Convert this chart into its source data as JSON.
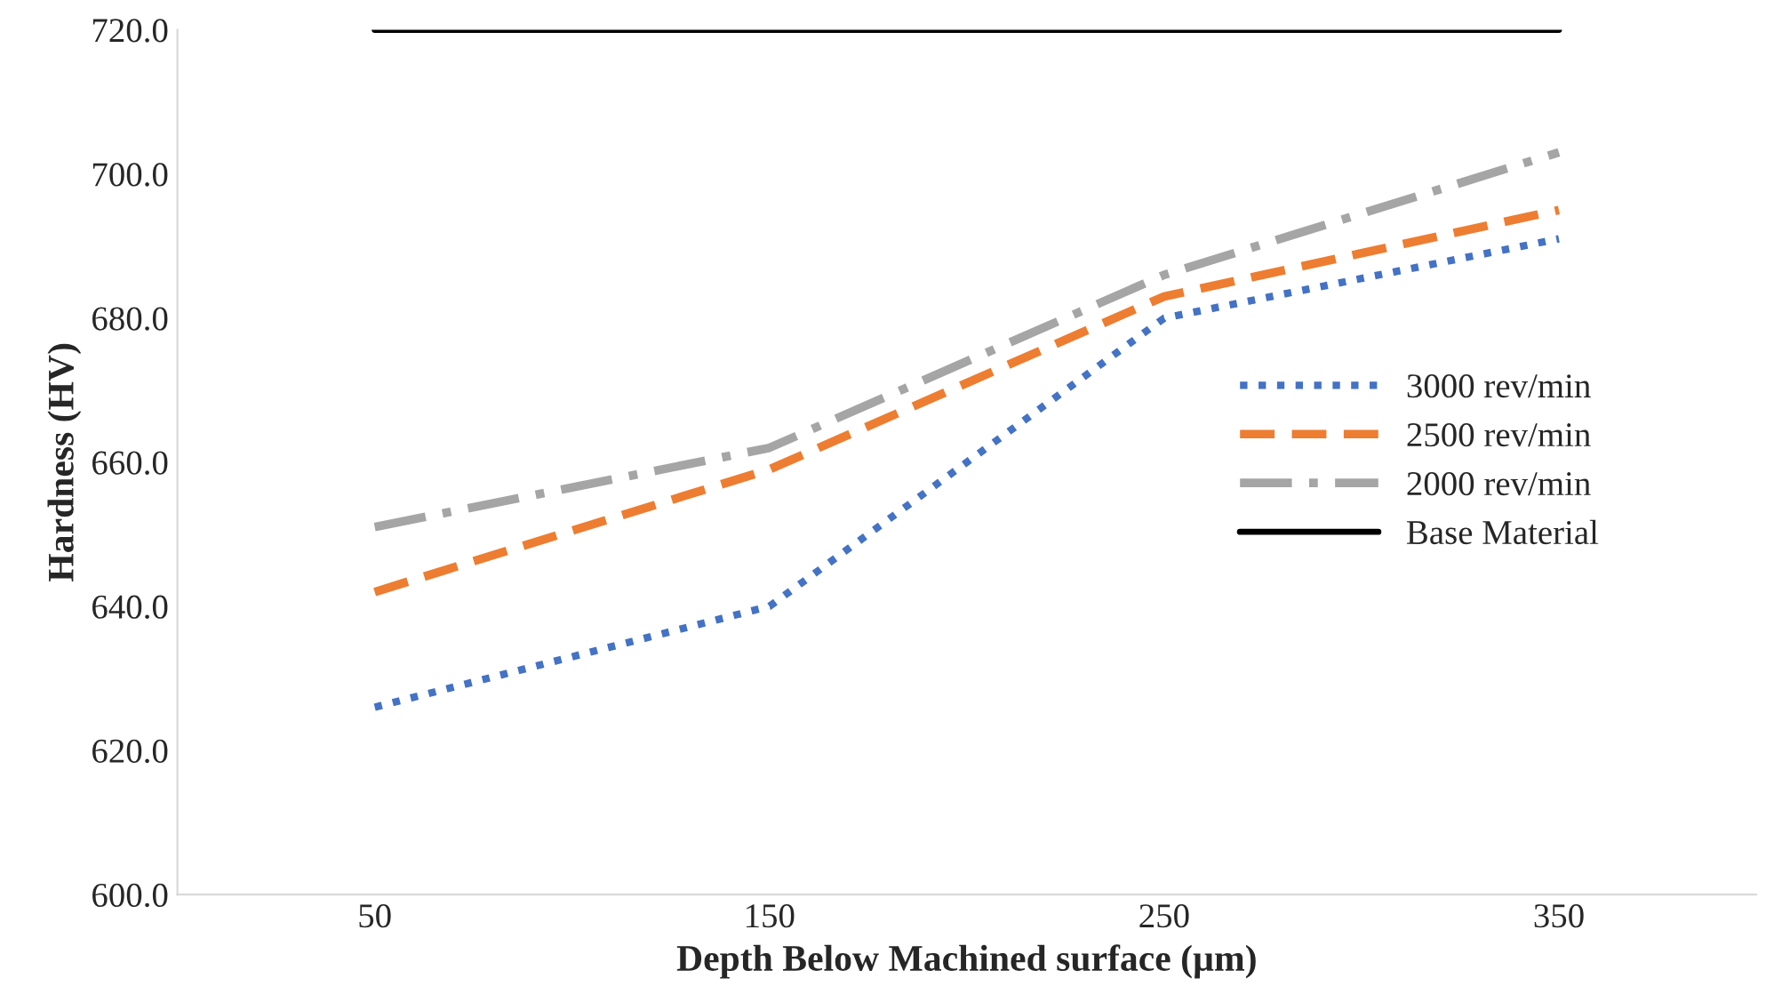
{
  "chart_data": {
    "type": "line",
    "xlabel": "Depth Below Machined surface (µm)",
    "ylabel": "Hardness (HV)",
    "categories": [
      "50",
      "150",
      "250",
      "350"
    ],
    "series": [
      {
        "name": "3000 rev/min",
        "color": "#4472c4",
        "line_style": "dotted",
        "values": [
          626,
          640,
          680,
          691
        ]
      },
      {
        "name": "2500 rev/min",
        "color": "#ed7d31",
        "line_style": "dashed",
        "values": [
          642,
          659,
          683,
          695
        ]
      },
      {
        "name": "2000 rev/min",
        "color": "#a5a5a5",
        "line_style": "dashdot",
        "values": [
          651,
          662,
          686,
          703
        ]
      },
      {
        "name": "Base Material",
        "color": "#000000",
        "line_style": "solid",
        "values": [
          720,
          720,
          720,
          720
        ]
      }
    ],
    "ylim": [
      600,
      720
    ],
    "yticks": [
      {
        "value": 600,
        "label": "600.0"
      },
      {
        "value": 620,
        "label": "620.0"
      },
      {
        "value": 640,
        "label": "640.0"
      },
      {
        "value": 660,
        "label": "660.0"
      },
      {
        "value": 680,
        "label": "680.0"
      },
      {
        "value": 700,
        "label": "700.0"
      },
      {
        "value": 720,
        "label": "720.0"
      }
    ],
    "grid": false,
    "legend": "right",
    "marker": "none"
  }
}
